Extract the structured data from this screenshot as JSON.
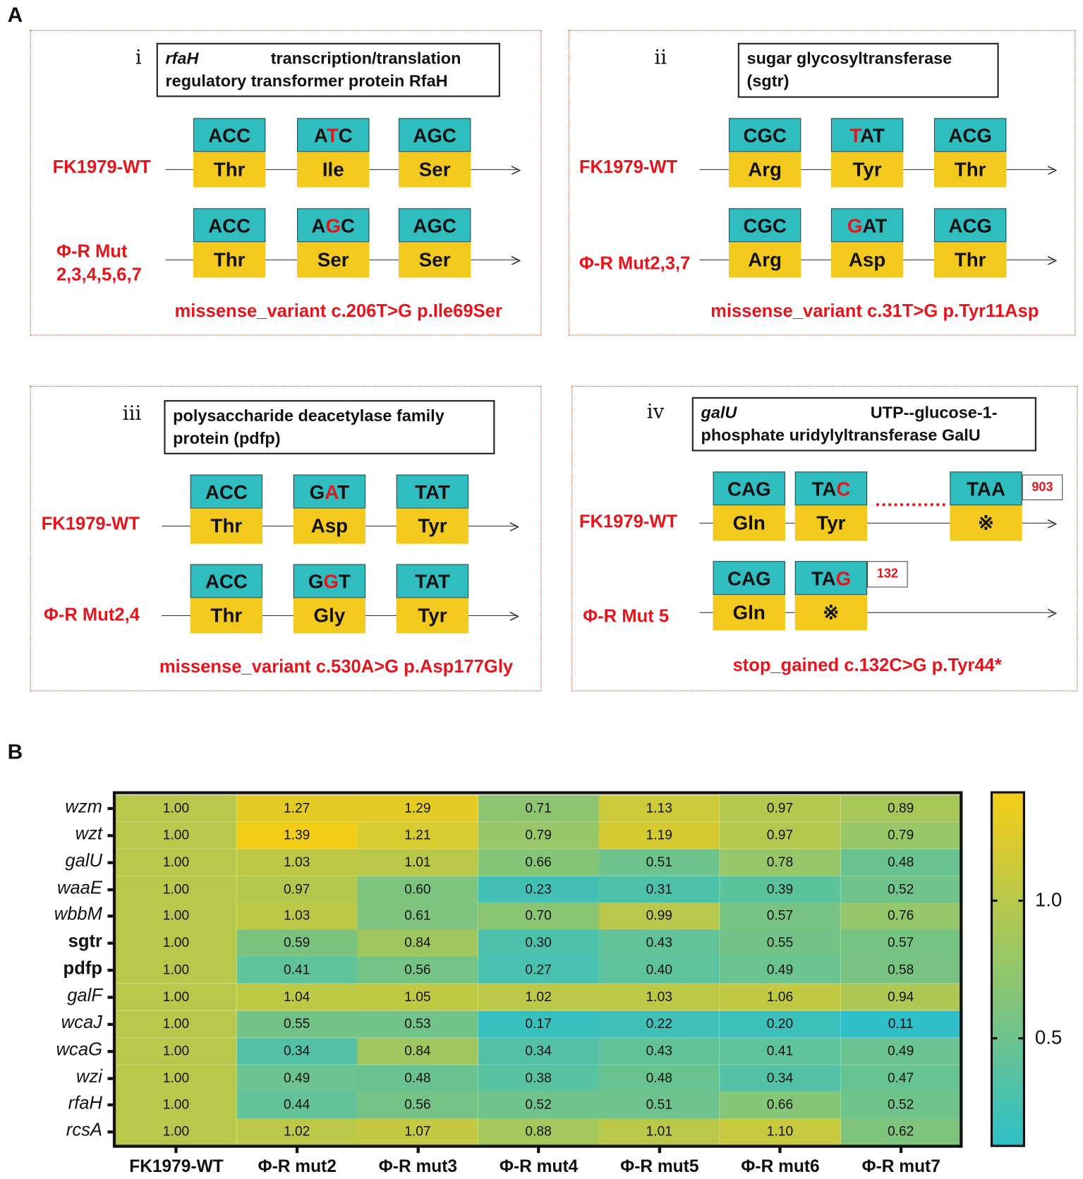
{
  "panel_letters": {
    "a": "A",
    "b": "B"
  },
  "panels": [
    {
      "numeral": "i",
      "title": {
        "gene": "rfaH",
        "line1": "transcription/translation",
        "line2": "regulatory transformer protein RfaH"
      },
      "rows": [
        {
          "label": "FK1979-WT",
          "codons": [
            {
              "nt": "ACC",
              "red": -1,
              "aa": "Thr",
              "aa_red": false
            },
            {
              "nt": "ATC",
              "red": 1,
              "aa": "Ile",
              "aa_red": false
            },
            {
              "nt": "AGC",
              "red": -1,
              "aa": "Ser",
              "aa_red": false
            }
          ]
        },
        {
          "label": "Φ-R Mut\n2,3,4,5,6,7",
          "codons": [
            {
              "nt": "ACC",
              "red": -1,
              "aa": "Thr",
              "aa_red": false
            },
            {
              "nt": "AGC",
              "red": 1,
              "aa": "Ser",
              "aa_red": true
            },
            {
              "nt": "AGC",
              "red": -1,
              "aa": "Ser",
              "aa_red": false
            }
          ]
        }
      ],
      "variant": "missense_variant c.206T>G p.Ile69Ser"
    },
    {
      "numeral": "ii",
      "title": {
        "gene": "",
        "line1": "sugar glycosyltransferase",
        "line2": "(sgtr)"
      },
      "rows": [
        {
          "label": "FK1979-WT",
          "codons": [
            {
              "nt": "CGC",
              "red": -1,
              "aa": "Arg",
              "aa_red": false
            },
            {
              "nt": "TAT",
              "red": 0,
              "aa": "Tyr",
              "aa_red": false
            },
            {
              "nt": "ACG",
              "red": -1,
              "aa": "Thr",
              "aa_red": false
            }
          ]
        },
        {
          "label": "Φ-R Mut2,3,7",
          "codons": [
            {
              "nt": "CGC",
              "red": -1,
              "aa": "Arg",
              "aa_red": false
            },
            {
              "nt": "GAT",
              "red": 0,
              "aa": "Asp",
              "aa_red": true
            },
            {
              "nt": "ACG",
              "red": -1,
              "aa": "Thr",
              "aa_red": false
            }
          ]
        }
      ],
      "variant": "missense_variant c.31T>G p.Tyr11Asp"
    },
    {
      "numeral": "iii",
      "title": {
        "gene": "",
        "line1": "polysaccharide deacetylase family",
        "line2": "protein (pdfp)"
      },
      "rows": [
        {
          "label": "FK1979-WT",
          "codons": [
            {
              "nt": "ACC",
              "red": -1,
              "aa": "Thr",
              "aa_red": false
            },
            {
              "nt": "GAT",
              "red": 1,
              "aa": "Asp",
              "aa_red": false
            },
            {
              "nt": "TAT",
              "red": -1,
              "aa": "Tyr",
              "aa_red": false
            }
          ]
        },
        {
          "label": "Φ-R Mut2,4",
          "codons": [
            {
              "nt": "ACC",
              "red": -1,
              "aa": "Thr",
              "aa_red": false
            },
            {
              "nt": "GGT",
              "red": 1,
              "aa": "Gly",
              "aa_red": true
            },
            {
              "nt": "TAT",
              "red": -1,
              "aa": "Tyr",
              "aa_red": false
            }
          ]
        }
      ],
      "variant": "missense_variant c.530A>G p.Asp177Gly"
    },
    {
      "numeral": "iv",
      "title": {
        "gene": "galU",
        "line1": "UTP--glucose-1-",
        "line2": "phosphate uridylyltransferase GalU"
      },
      "rows": [
        {
          "label": "FK1979-WT",
          "codons": [
            {
              "nt": "CAG",
              "red": -1,
              "aa": "Gln",
              "aa_red": false
            },
            {
              "nt": "TAC",
              "red": 2,
              "aa": "Tyr",
              "aa_red": false
            },
            {
              "nt": "TAA",
              "red": -1,
              "aa": "※",
              "aa_red": true,
              "tag": "903"
            }
          ]
        },
        {
          "label": "Φ-R Mut 5",
          "codons": [
            {
              "nt": "CAG",
              "red": -1,
              "aa": "Gln",
              "aa_red": false
            },
            {
              "nt": "TAG",
              "red": 2,
              "aa": "※",
              "aa_red": true,
              "tag": "132"
            }
          ]
        }
      ],
      "variant": "stop_gained c.132C>G p.Tyr44*"
    }
  ],
  "chart_data": {
    "type": "heatmap",
    "rows": [
      "wzm",
      "wzt",
      "galU",
      "waaE",
      "wbbM",
      "sgtr",
      "pdfp",
      "galF",
      "wcaJ",
      "wcaG",
      "wzi",
      "rfaH",
      "rcsA"
    ],
    "columns": [
      "FK1979-WT",
      "Φ-R mut2",
      "Φ-R mut3",
      "Φ-R mut4",
      "Φ-R mut5",
      "Φ-R mut6",
      "Φ-R mut7"
    ],
    "values": [
      [
        "1.00",
        "1.27",
        "1.29",
        "0.71",
        "1.13",
        "0.97",
        "0.89"
      ],
      [
        "1.00",
        "1.39",
        "1.21",
        "0.79",
        "1.19",
        "0.97",
        "0.79"
      ],
      [
        "1.00",
        "1.03",
        "1.01",
        "0.66",
        "0.51",
        "0.78",
        "0.48"
      ],
      [
        "1.00",
        "0.97",
        "0.60",
        "0.23",
        "0.31",
        "0.39",
        "0.52"
      ],
      [
        "1.00",
        "1.03",
        "0.61",
        "0.70",
        "0.99",
        "0.57",
        "0.76"
      ],
      [
        "1.00",
        "0.59",
        "0.84",
        "0.30",
        "0.43",
        "0.55",
        "0.57"
      ],
      [
        "1.00",
        "0.41",
        "0.56",
        "0.27",
        "0.40",
        "0.49",
        "0.58"
      ],
      [
        "1.00",
        "1.04",
        "1.05",
        "1.02",
        "1.03",
        "1.06",
        "0.94"
      ],
      [
        "1.00",
        "0.55",
        "0.53",
        "0.17",
        "0.22",
        "0.20",
        "0.11"
      ],
      [
        "1.00",
        "0.34",
        "0.84",
        "0.34",
        "0.43",
        "0.41",
        "0.49"
      ],
      [
        "1.00",
        "0.49",
        "0.48",
        "0.38",
        "0.48",
        "0.34",
        "0.47"
      ],
      [
        "1.00",
        "0.44",
        "0.56",
        "0.52",
        "0.51",
        "0.66",
        "0.52"
      ],
      [
        "1.00",
        "1.02",
        "1.07",
        "0.88",
        "1.01",
        "1.10",
        "0.62"
      ]
    ],
    "colorbar": {
      "range": [
        0.11,
        1.39
      ],
      "ticks": [
        "1.0",
        "0.5"
      ],
      "tick_values": [
        1.0,
        0.5
      ],
      "colors": [
        "#2fbfc8",
        "#7cc47f",
        "#b8c84b",
        "#f4cd17"
      ]
    }
  }
}
